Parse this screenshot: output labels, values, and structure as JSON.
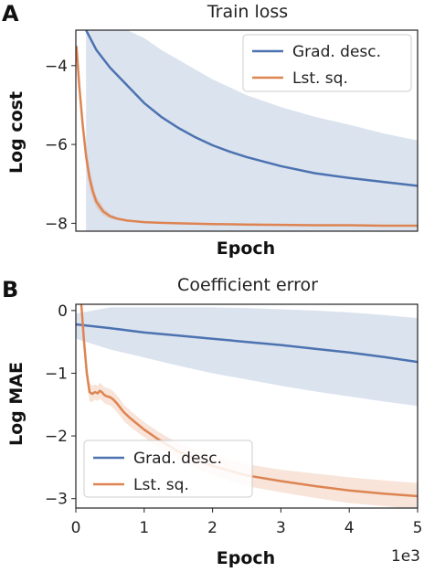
{
  "chart_data": [
    {
      "panel_letter": "A",
      "type": "line",
      "title": "Train loss",
      "xlabel": "Epoch",
      "ylabel": "Log cost",
      "xlim": [
        0,
        5000
      ],
      "ylim": [
        -8.2,
        -3.1
      ],
      "yticks": [
        -4,
        -6,
        -8
      ],
      "ytick_labels": [
        "−4",
        "−6",
        "−8"
      ],
      "show_xticks": false,
      "grid": false,
      "legend": "top-right",
      "series": [
        {
          "name": "Grad. desc.",
          "color": "#4c72b0",
          "x": [
            150,
            300,
            500,
            750,
            1000,
            1250,
            1500,
            1750,
            2000,
            2250,
            2500,
            3000,
            3500,
            4000,
            4500,
            5000
          ],
          "y": [
            -3.1,
            -3.6,
            -4.05,
            -4.5,
            -4.95,
            -5.3,
            -5.58,
            -5.82,
            -6.02,
            -6.18,
            -6.32,
            -6.55,
            -6.73,
            -6.85,
            -6.95,
            -7.05
          ],
          "band_upper": [
            -3.1,
            -3.1,
            -3.1,
            -3.1,
            -3.3,
            -3.6,
            -3.85,
            -4.1,
            -4.35,
            -4.55,
            -4.75,
            -5.05,
            -5.3,
            -5.5,
            -5.72,
            -5.9
          ],
          "band_lower": [
            -8.2,
            -8.2,
            -8.2,
            -8.2,
            -8.2,
            -8.2,
            -8.2,
            -8.2,
            -8.2,
            -8.2,
            -8.2,
            -8.2,
            -8.2,
            -8.2,
            -8.2,
            -8.2
          ]
        },
        {
          "name": "Lst. sq.",
          "color": "#dd8452",
          "x": [
            10,
            50,
            100,
            150,
            200,
            250,
            300,
            400,
            500,
            600,
            750,
            1000,
            1250,
            1500,
            2000,
            2500,
            3000,
            3500,
            4000,
            4500,
            5000
          ],
          "y": [
            -3.5,
            -4.5,
            -5.5,
            -6.3,
            -6.85,
            -7.2,
            -7.45,
            -7.7,
            -7.82,
            -7.88,
            -7.93,
            -7.97,
            -7.99,
            -8.0,
            -8.02,
            -8.03,
            -8.04,
            -8.05,
            -8.05,
            -8.06,
            -8.06
          ],
          "band_upper": [
            -3.4,
            -4.3,
            -5.3,
            -6.05,
            -6.6,
            -7.0,
            -7.3,
            -7.6,
            -7.76,
            -7.85,
            -7.91,
            -7.96,
            -7.98,
            -7.99,
            -8.01,
            -8.02,
            -8.03,
            -8.04,
            -8.04,
            -8.05,
            -8.05
          ],
          "band_lower": [
            -3.6,
            -4.7,
            -5.7,
            -6.55,
            -7.1,
            -7.4,
            -7.6,
            -7.8,
            -7.88,
            -7.92,
            -7.96,
            -7.99,
            -8.01,
            -8.02,
            -8.03,
            -8.04,
            -8.05,
            -8.06,
            -8.06,
            -8.07,
            -8.07
          ]
        }
      ]
    },
    {
      "panel_letter": "B",
      "type": "line",
      "title": "Coefficient error",
      "xlabel": "Epoch",
      "ylabel": "Log MAE",
      "xlim": [
        0,
        5000
      ],
      "ylim": [
        -3.15,
        0.1
      ],
      "xticks": [
        0,
        1000,
        2000,
        3000,
        4000,
        5000
      ],
      "xtick_labels": [
        "0",
        "1",
        "2",
        "3",
        "4",
        "5"
      ],
      "x_offset_label": "1e3",
      "yticks": [
        0,
        -1,
        -2,
        -3
      ],
      "ytick_labels": [
        "0",
        "−1",
        "−2",
        "−3"
      ],
      "grid": false,
      "legend": "bottom-left",
      "series": [
        {
          "name": "Grad. desc.",
          "color": "#4c72b0",
          "x": [
            0,
            500,
            1000,
            1500,
            2000,
            2500,
            3000,
            3500,
            4000,
            4500,
            5000
          ],
          "y": [
            -0.22,
            -0.28,
            -0.35,
            -0.4,
            -0.45,
            -0.5,
            -0.55,
            -0.61,
            -0.67,
            -0.74,
            -0.82
          ],
          "band_upper": [
            -0.05,
            0.05,
            0.05,
            0.05,
            0.05,
            0.04,
            0.02,
            0.0,
            -0.03,
            -0.07,
            -0.12
          ],
          "band_lower": [
            -0.45,
            -0.62,
            -0.75,
            -0.88,
            -1.0,
            -1.1,
            -1.2,
            -1.29,
            -1.37,
            -1.45,
            -1.52
          ]
        },
        {
          "name": "Lst. sq.",
          "color": "#dd8452",
          "x": [
            80,
            120,
            160,
            200,
            240,
            280,
            320,
            350,
            380,
            420,
            460,
            500,
            550,
            600,
            650,
            700,
            800,
            1000,
            1200,
            1500,
            2000,
            2500,
            3000,
            3500,
            4000,
            4500,
            5000
          ],
          "y": [
            0.1,
            -0.5,
            -1.0,
            -1.3,
            -1.33,
            -1.3,
            -1.32,
            -1.28,
            -1.3,
            -1.35,
            -1.37,
            -1.38,
            -1.42,
            -1.48,
            -1.55,
            -1.62,
            -1.72,
            -1.9,
            -2.05,
            -2.25,
            -2.48,
            -2.63,
            -2.72,
            -2.8,
            -2.87,
            -2.92,
            -2.96
          ],
          "band_upper": [
            0.1,
            -0.4,
            -0.85,
            -1.15,
            -1.2,
            -1.18,
            -1.2,
            -1.15,
            -1.18,
            -1.22,
            -1.24,
            -1.25,
            -1.29,
            -1.35,
            -1.42,
            -1.5,
            -1.6,
            -1.78,
            -1.93,
            -2.12,
            -2.32,
            -2.45,
            -2.54,
            -2.6,
            -2.66,
            -2.71,
            -2.75
          ],
          "band_lower": [
            0.1,
            -0.6,
            -1.15,
            -1.45,
            -1.46,
            -1.42,
            -1.44,
            -1.41,
            -1.43,
            -1.48,
            -1.5,
            -1.51,
            -1.56,
            -1.62,
            -1.69,
            -1.76,
            -1.86,
            -2.02,
            -2.17,
            -2.38,
            -2.63,
            -2.8,
            -2.9,
            -2.99,
            -3.07,
            -3.12,
            -3.17
          ]
        }
      ]
    }
  ]
}
